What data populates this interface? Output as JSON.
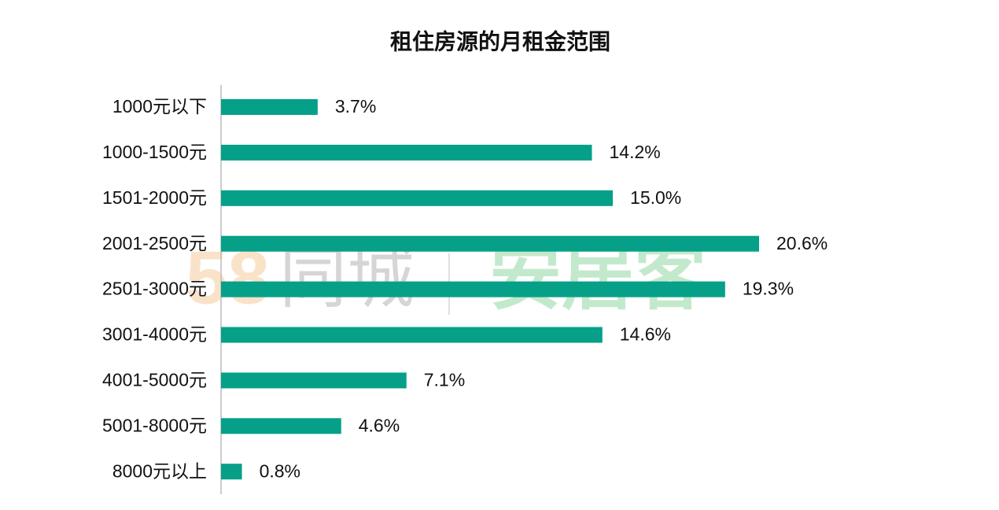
{
  "chart_data": {
    "type": "hbar",
    "title": "租住房源的月租金范围",
    "categories": [
      "1000元以下",
      "1000-1500元",
      "1501-2000元",
      "2001-2500元",
      "2501-3000元",
      "3001-4000元",
      "4001-5000元",
      "5001-8000元",
      "8000元以上"
    ],
    "values": [
      3.7,
      14.2,
      15.0,
      20.6,
      19.3,
      14.6,
      7.1,
      4.6,
      0.8
    ],
    "value_labels": [
      "3.7%",
      "14.2%",
      "15.0%",
      "20.6%",
      "19.3%",
      "14.6%",
      "7.1%",
      "4.6%",
      "0.8%"
    ],
    "color": "#06a088",
    "watermark": {
      "number": "58",
      "left": "同城",
      "right": "安居客"
    }
  }
}
